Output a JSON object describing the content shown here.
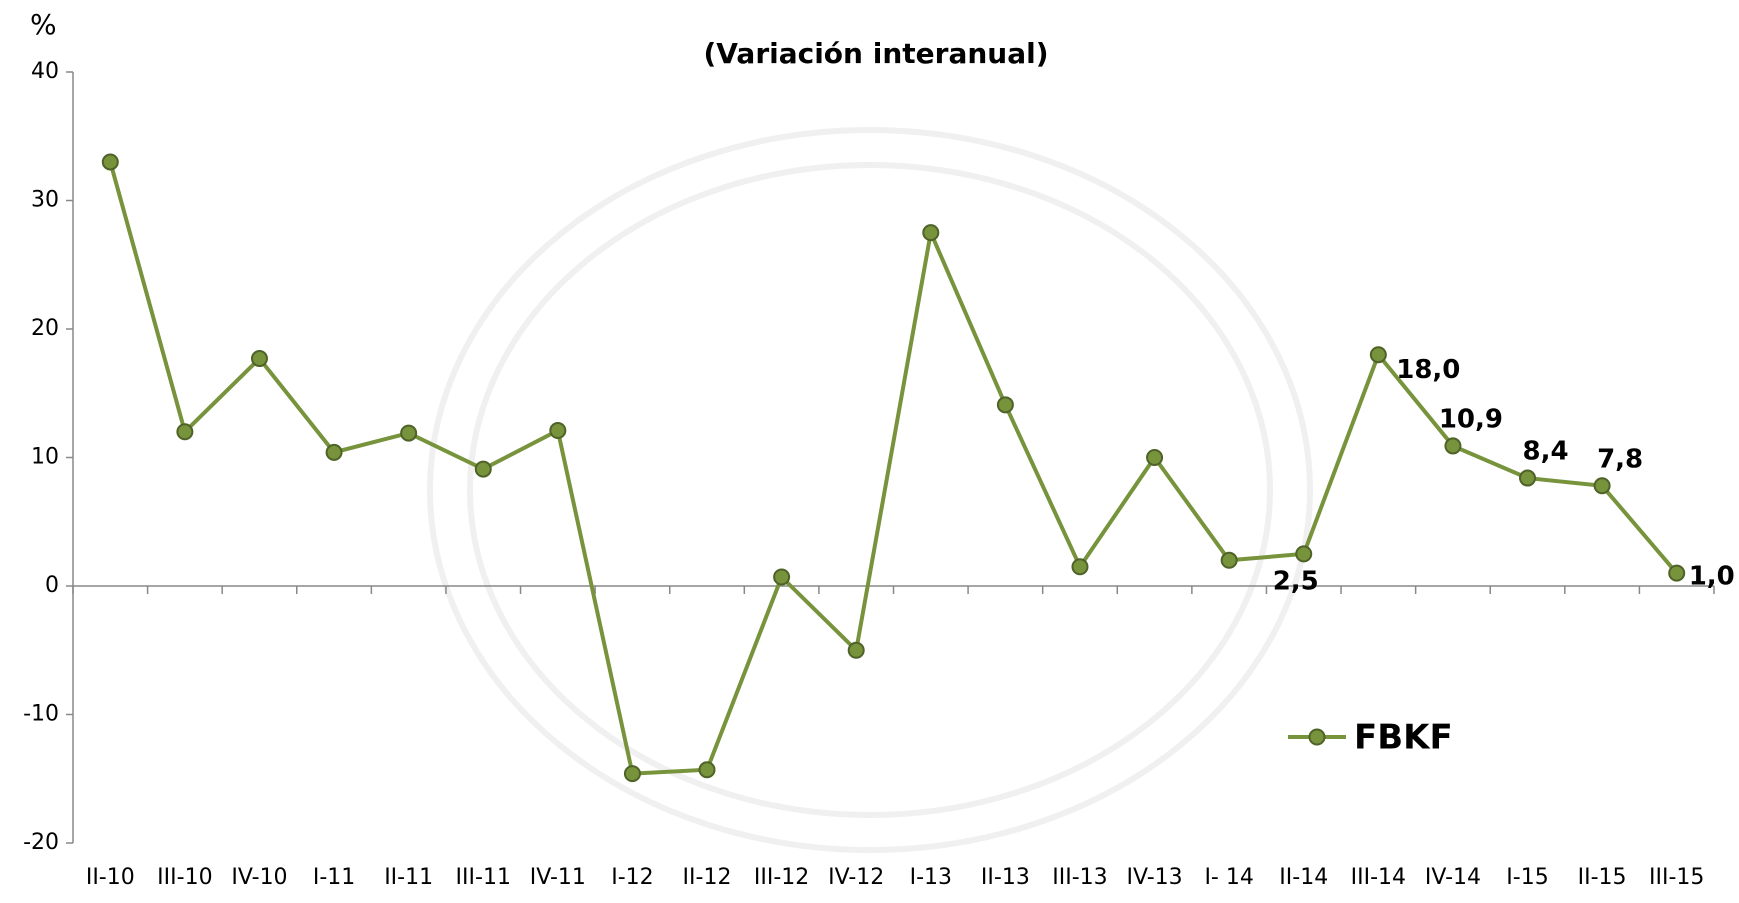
{
  "chart_data": {
    "type": "line",
    "title": "(Variación interanual)",
    "ylabel": "%",
    "categories": [
      "II-10",
      "III-10",
      "IV-10",
      "I-11",
      "II-11",
      "III-11",
      "IV-11",
      "I-12",
      "II-12",
      "III-12",
      "IV-12",
      "I-13",
      "II-13",
      "III-13",
      "IV-13",
      "I- 14",
      "II-14",
      "III-14",
      "IV-14",
      "I-15",
      "II-15",
      "III-15"
    ],
    "series": [
      {
        "name": "FBKF",
        "color": "#77933c",
        "values": [
          33.0,
          12.0,
          17.7,
          10.4,
          11.9,
          9.1,
          12.1,
          -14.6,
          -14.3,
          0.7,
          -5.0,
          27.5,
          14.1,
          1.5,
          10.0,
          2.0,
          2.5,
          18.0,
          10.9,
          8.4,
          7.8,
          1.0
        ],
        "value_labels": [
          null,
          null,
          null,
          null,
          null,
          null,
          null,
          null,
          null,
          null,
          null,
          null,
          null,
          null,
          null,
          null,
          "2,5",
          "18,0",
          "10,9",
          "8,4",
          "7,8",
          "1,0"
        ]
      }
    ],
    "ylim": [
      -20,
      40
    ],
    "yticks": [
      -20,
      -10,
      0,
      10,
      20,
      30,
      40
    ],
    "legend": "lower right"
  }
}
